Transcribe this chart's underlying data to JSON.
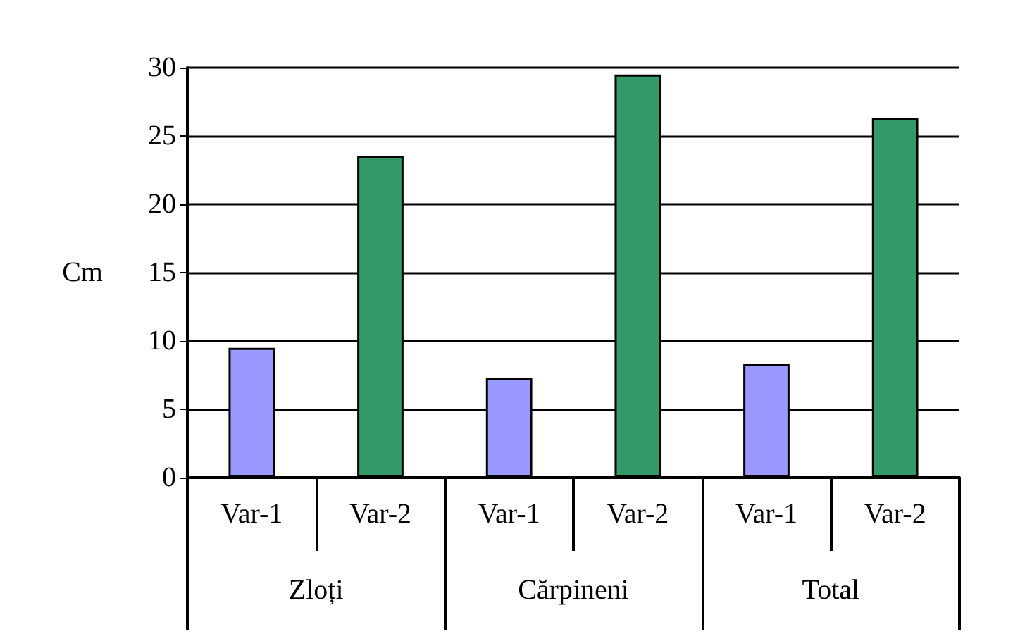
{
  "chart_data": {
    "type": "bar",
    "ylabel": "Cm",
    "categories": [
      "Var-1",
      "Var-2",
      "Var-1",
      "Var-2",
      "Var-1",
      "Var-2"
    ],
    "values": [
      9.5,
      23.5,
      7.3,
      29.5,
      8.3,
      26.3
    ],
    "colors": [
      "#9999ff",
      "#339966",
      "#9999ff",
      "#339966",
      "#9999ff",
      "#339966"
    ],
    "annotations": [
      "Zloți",
      "Cărpineni",
      "Total"
    ],
    "ylim": [
      0,
      30
    ],
    "yticks": [
      0,
      5,
      10,
      15,
      20,
      25,
      30
    ],
    "grid": "y"
  }
}
